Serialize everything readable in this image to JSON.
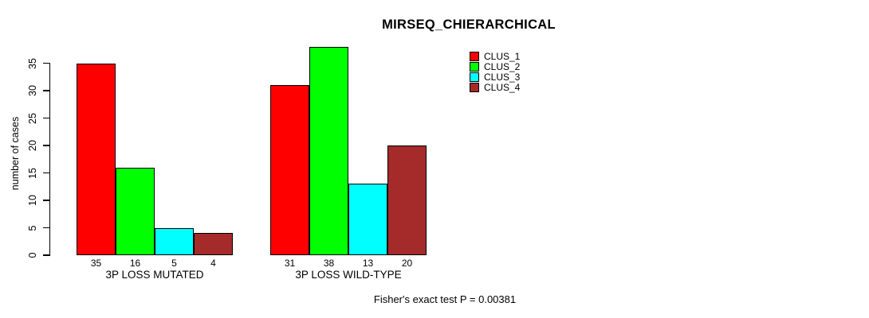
{
  "chart_data": {
    "type": "bar",
    "title": "MIRSEQ_CHIERARCHICAL",
    "ylabel": "number of cases",
    "xlabel": "",
    "categories": [
      "3P LOSS MUTATED",
      "3P LOSS WILD-TYPE"
    ],
    "series": [
      {
        "name": "CLUS_1",
        "color": "#FF0000",
        "values": [
          35,
          31
        ]
      },
      {
        "name": "CLUS_2",
        "color": "#00FF00",
        "values": [
          16,
          38
        ]
      },
      {
        "name": "CLUS_3",
        "color": "#00FFFF",
        "values": [
          5,
          13
        ]
      },
      {
        "name": "CLUS_4",
        "color": "#A52A2A",
        "values": [
          4,
          20
        ]
      }
    ],
    "bar_value_labels": [
      [
        35,
        16,
        5,
        4
      ],
      [
        31,
        38,
        13,
        20
      ]
    ],
    "yticks": [
      0,
      5,
      10,
      15,
      20,
      25,
      30,
      35
    ],
    "ylim": [
      0,
      38
    ],
    "grid": false,
    "legend_position": "top-right",
    "annotation": "Fisher's exact test P = 0.00381",
    "colors": {
      "background": "#FFFFFF",
      "axis": "#000000",
      "text": "#000000"
    }
  }
}
